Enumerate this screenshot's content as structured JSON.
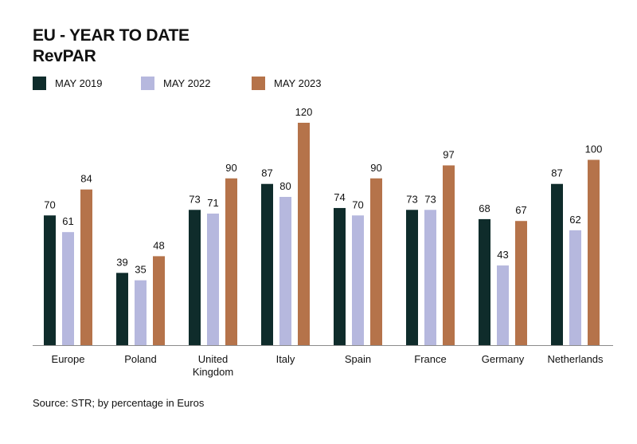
{
  "chart_data": {
    "type": "bar",
    "title": "EU - YEAR TO DATE",
    "subtitle": "RevPAR",
    "categories": [
      "Europe",
      "Poland",
      "United Kingdom",
      "Italy",
      "Spain",
      "France",
      "Germany",
      "Netherlands"
    ],
    "series": [
      {
        "name": "MAY 2019",
        "color": "#0f2c2b",
        "values": [
          70,
          39,
          73,
          87,
          74,
          73,
          68,
          87
        ]
      },
      {
        "name": "MAY 2022",
        "color": "#b6b8de",
        "values": [
          61,
          35,
          71,
          80,
          70,
          73,
          43,
          62
        ]
      },
      {
        "name": "MAY 2023",
        "color": "#b5734a",
        "values": [
          84,
          48,
          90,
          120,
          90,
          97,
          67,
          100
        ]
      }
    ],
    "ylim": [
      0,
      120
    ],
    "grid": false,
    "legend_position": "top-left",
    "source": "Source: STR; by percentage in Euros"
  }
}
